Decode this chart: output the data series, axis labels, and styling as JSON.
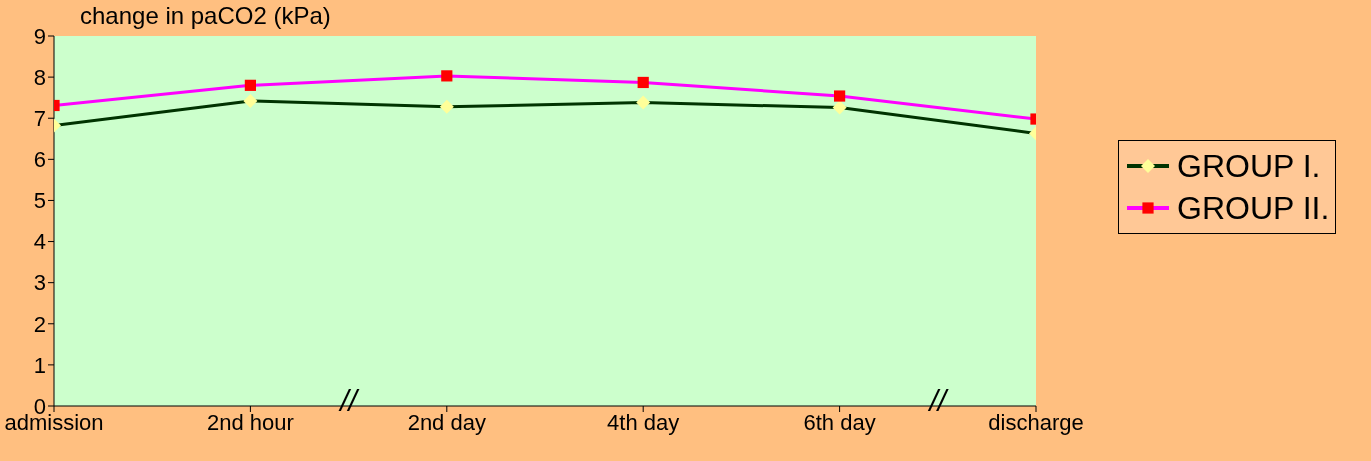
{
  "chart_data": {
    "type": "line",
    "title": "change in paCO2 (kPa)",
    "categories": [
      "admission",
      "2nd hour",
      "2nd day",
      "4th day",
      "6th day",
      "discharge"
    ],
    "series": [
      {
        "name": "GROUP I.",
        "color": "#003300",
        "marker": "diamond",
        "colors": [
          "#ffff99",
          "#ffff99",
          "#ffff99",
          "#ffff99",
          "#ffff99",
          "#ffff99"
        ],
        "values": [
          6.82,
          7.42,
          7.28,
          7.38,
          7.26,
          6.63
        ]
      },
      {
        "name": "GROUP II.",
        "color": "#ff00ff",
        "marker": "square",
        "colors": [
          "#ff0000",
          "#ff0000",
          "#ff0000",
          "#ff0000",
          "#ff0000",
          "#ff0000"
        ],
        "values": [
          7.31,
          7.8,
          8.03,
          7.87,
          7.54,
          6.98
        ]
      }
    ],
    "ylim": [
      0,
      9
    ],
    "yticks": [
      0,
      1,
      2,
      3,
      4,
      5,
      6,
      7,
      8,
      9
    ],
    "grid": false,
    "legend": "right",
    "line_style": "solid",
    "annotations": [
      "//",
      "//"
    ]
  }
}
